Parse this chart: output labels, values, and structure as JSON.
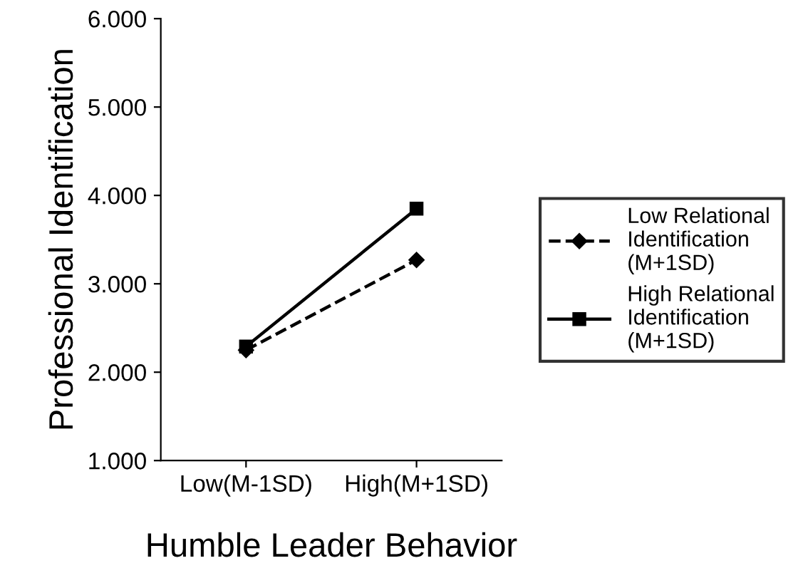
{
  "chart_data": {
    "type": "line",
    "xlabel": "Humble Leader Behavior",
    "ylabel": "Professional Identification",
    "categories": [
      "Low(M-1SD)",
      "High(M+1SD)"
    ],
    "series": [
      {
        "name": "Low Relational Identification (M+1SD)",
        "color": "#000000",
        "values": [
          2.25,
          3.27
        ],
        "marker": "diamond",
        "line_style": "dashed"
      },
      {
        "name": "High Relational Identification (M+1SD)",
        "color": "#000000",
        "values": [
          2.29,
          3.85
        ],
        "marker": "square",
        "line_style": "solid"
      }
    ],
    "ylim": [
      1,
      6
    ],
    "yticks": [
      {
        "value": 1,
        "label": "1.000"
      },
      {
        "value": 2,
        "label": "2.000"
      },
      {
        "value": 3,
        "label": "3.000"
      },
      {
        "value": 4,
        "label": "4.000"
      },
      {
        "value": 5,
        "label": "5.000"
      },
      {
        "value": 6,
        "label": "6.000"
      }
    ],
    "grid": false,
    "legend": "right"
  }
}
